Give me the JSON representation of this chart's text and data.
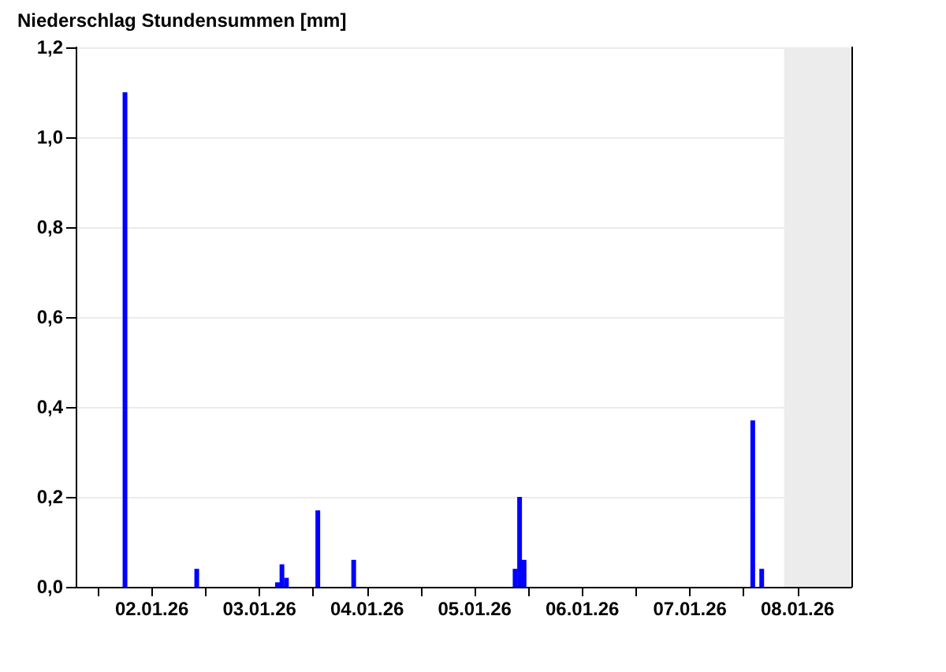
{
  "chart_data": {
    "type": "bar",
    "title": "Niederschlag Stundensummen [mm]",
    "x": [
      "--01-02T06:00",
      "--01-02T22:00",
      "--01-03T16:00",
      "--01-03T17:00",
      "--01-03T18:00",
      "--01-04T01:00",
      "--01-04T09:00",
      "--01-05T21:00",
      "--01-05T22:00",
      "--01-05T23:00",
      "--01-08T02:00",
      "--01-08T04:00"
    ],
    "values": [
      1.1,
      0.04,
      0.01,
      0.05,
      0.02,
      0.17,
      0.06,
      0.04,
      0.2,
      0.06,
      0.37,
      0.04
    ],
    "color": "#0000ff",
    "xlim": [
      "--01-01T19:00",
      "--01-09T00:00"
    ],
    "xticks": [
      {
        "value": "--01-02T00:00",
        "label": null
      },
      {
        "value": "--01-02T12:00",
        "label": "02.01.26"
      },
      {
        "value": "--01-03T00:00",
        "label": null
      },
      {
        "value": "--01-03T12:00",
        "label": "03.01.26"
      },
      {
        "value": "--01-04T00:00",
        "label": null
      },
      {
        "value": "--01-04T12:00",
        "label": "04.01.26"
      },
      {
        "value": "--01-05T00:00",
        "label": null
      },
      {
        "value": "--01-05T12:00",
        "label": "05.01.26"
      },
      {
        "value": "--01-06T00:00",
        "label": null
      },
      {
        "value": "--01-06T12:00",
        "label": "06.01.26"
      },
      {
        "value": "--01-07T00:00",
        "label": null
      },
      {
        "value": "--01-07T12:00",
        "label": "07.01.26"
      },
      {
        "value": "--01-08T00:00",
        "label": null
      },
      {
        "value": "--01-08T12:00",
        "label": "08.01.26"
      }
    ],
    "ylim": [
      0,
      1.2
    ],
    "yticks": [
      {
        "value": 0,
        "label": "0,0"
      },
      {
        "value": 0.2,
        "label": "0,2"
      },
      {
        "value": 0.4,
        "label": "0,4"
      },
      {
        "value": 0.6,
        "label": "0,6"
      },
      {
        "value": 0.8,
        "label": "0,8"
      },
      {
        "value": 1.0,
        "label": "1,0"
      },
      {
        "value": 1.2,
        "label": "1,2"
      }
    ],
    "grid": "y",
    "bands": [
      {
        "axis": "x",
        "from": "--01-08T09:00",
        "to": "--01-09T00:00",
        "color": "#ececec"
      }
    ]
  }
}
